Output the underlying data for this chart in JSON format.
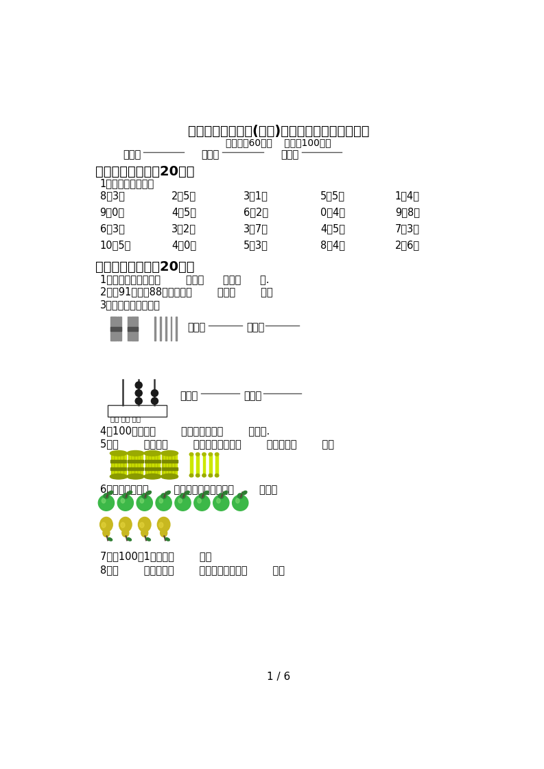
{
  "title": "部编版一年级数学(下册)期末试题及答案（通用）",
  "subtitle": "（时间：60分钟    分数：100分）",
  "section1_title": "一、计算小能手（20分）",
  "section1_sub": "1、直接写出得数。",
  "math_rows": [
    [
      "8－3＝",
      "2＋5＝",
      "3－1＝",
      "5－5＝",
      "1＋4＝"
    ],
    [
      "9－0＝",
      "4＋5＝",
      "6＋2＝",
      "0＋4＝",
      "9－8＝"
    ],
    [
      "6－3＝",
      "3－2＝",
      "3＋7＝",
      "4＋5＝",
      "7－3＝"
    ],
    [
      "10－5＝",
      "4－0＝",
      "5＋3＝",
      "8－4＝",
      "2＋6＝"
    ]
  ],
  "section2_title": "二、填空题。（共20分）",
  "fill_q1": "1、人民币的单位有（        ）、（      ）、（      ）.",
  "fill_q2": "2、比91小，比88大的数是（        ）和（        ）。",
  "fill_q3": "3、我会读，我会写。",
  "fill_q3_read1a": "读作：",
  "fill_q3_read1b": "写作：",
  "fill_q3_read2a": "读作：",
  "fill_q3_read2b": "写作：",
  "fill_q4": "4、100个一是（        ），它里面有（        ）个十.",
  "fill_q5": "5、（        ）个十（        ）个一合起来是（        ），读作（        ）。",
  "fill_q6": "6、梨比苹果少（        ）个，梨和苹果一共（        ）个。",
  "fill_q7": "7、比100小1的数是（        ）。",
  "fill_q8": "8、（        ）个十和（        ）个一合起来是（        ）。",
  "baiwei": "百位",
  "shiwei": "十位",
  "gewei": "个位",
  "page_num": "1 / 6",
  "background_color": "#ffffff"
}
